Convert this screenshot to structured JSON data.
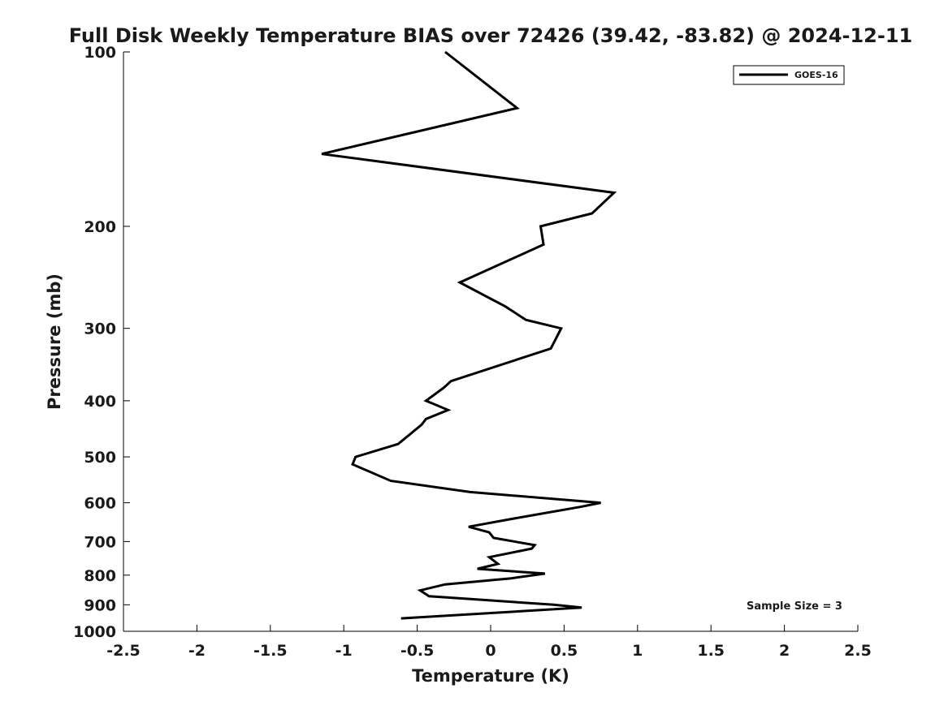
{
  "chart_data": {
    "type": "line",
    "title": "Full Disk Weekly Temperature BIAS over 72426 (39.42, -83.82) @ 2024-12-11",
    "xlabel": "Temperature (K)",
    "ylabel": "Pressure (mb)",
    "xlim": [
      -2.5,
      2.5
    ],
    "ylim": [
      100,
      1000
    ],
    "y_scale": "log",
    "y_reversed": true,
    "x_ticks": [
      "-2.5",
      "-2",
      "-1.5",
      "-1",
      "-0.5",
      "0",
      "0.5",
      "1",
      "1.5",
      "2",
      "2.5"
    ],
    "y_ticks": [
      "100",
      "200",
      "300",
      "400",
      "500",
      "600",
      "700",
      "800",
      "900",
      "1000"
    ],
    "grid": false,
    "legend_position": "top-right",
    "series": [
      {
        "name": "GOES-16",
        "color": "#000000",
        "points": [
          [
            -0.31,
            100
          ],
          [
            0.18,
            125
          ],
          [
            -1.15,
            150
          ],
          [
            0.84,
            175
          ],
          [
            0.69,
            190
          ],
          [
            0.34,
            200
          ],
          [
            0.36,
            215
          ],
          [
            -0.21,
            250
          ],
          [
            0.1,
            275
          ],
          [
            0.24,
            290
          ],
          [
            0.48,
            300
          ],
          [
            0.41,
            325
          ],
          [
            -0.27,
            370
          ],
          [
            -0.32,
            380
          ],
          [
            -0.44,
            400
          ],
          [
            -0.29,
            415
          ],
          [
            -0.44,
            430
          ],
          [
            -0.47,
            440
          ],
          [
            -0.63,
            475
          ],
          [
            -0.92,
            500
          ],
          [
            -0.94,
            515
          ],
          [
            -0.68,
            550
          ],
          [
            -0.14,
            575
          ],
          [
            0.75,
            600
          ],
          [
            0.61,
            610
          ],
          [
            0.14,
            640
          ],
          [
            -0.15,
            660
          ],
          [
            -0.01,
            675
          ],
          [
            0.02,
            690
          ],
          [
            0.3,
            710
          ],
          [
            0.28,
            720
          ],
          [
            -0.01,
            745
          ],
          [
            0.05,
            765
          ],
          [
            -0.09,
            780
          ],
          [
            0.37,
            795
          ],
          [
            0.14,
            810
          ],
          [
            -0.31,
            830
          ],
          [
            -0.48,
            850
          ],
          [
            -0.42,
            870
          ],
          [
            0.43,
            900
          ],
          [
            0.62,
            910
          ],
          [
            -0.61,
            950
          ]
        ]
      }
    ],
    "annotation": "Sample Size = 3"
  }
}
